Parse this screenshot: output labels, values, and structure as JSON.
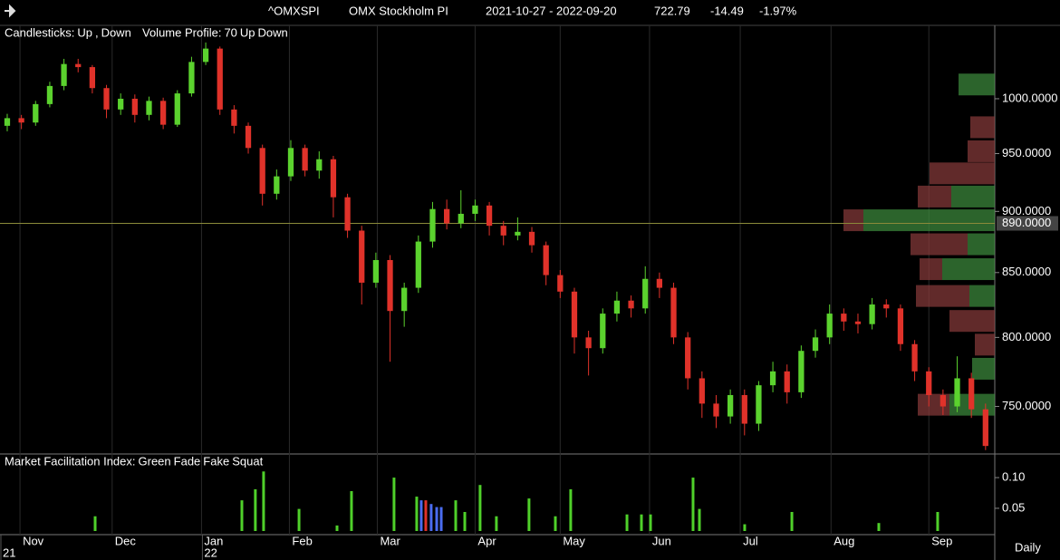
{
  "header": {
    "symbol": "^OMXSPI",
    "name": "OMX Stockholm PI",
    "range": "2021-10-27 - 2022-09-20",
    "last": 722.79,
    "change": -14.49,
    "change_pct": "-1.97%",
    "interval": "Daily"
  },
  "chart_data": [
    {
      "type": "candlestick",
      "legend_title": "Candlesticks:",
      "legend_separator": ",",
      "legend": [
        {
          "name": "Up",
          "color": "#5bd22e"
        },
        {
          "name": "Down",
          "color": "#e0322a"
        }
      ],
      "ohlc": [
        [
          975,
          986,
          970,
          982
        ],
        [
          982,
          985,
          972,
          978
        ],
        [
          978,
          998,
          975,
          995
        ],
        [
          995,
          1016,
          992,
          1012
        ],
        [
          1012,
          1038,
          1008,
          1033
        ],
        [
          1033,
          1038,
          1025,
          1030
        ],
        [
          1030,
          1032,
          1005,
          1010
        ],
        [
          1010,
          1013,
          982,
          990
        ],
        [
          990,
          1005,
          985,
          1000
        ],
        [
          1000,
          1004,
          978,
          985
        ],
        [
          985,
          1002,
          980,
          998
        ],
        [
          998,
          1001,
          972,
          976
        ],
        [
          976,
          1008,
          974,
          1005
        ],
        [
          1005,
          1040,
          1002,
          1035
        ],
        [
          1035,
          1054,
          1032,
          1048
        ],
        [
          1048,
          1050,
          985,
          990
        ],
        [
          990,
          994,
          968,
          975
        ],
        [
          975,
          978,
          950,
          955
        ],
        [
          955,
          958,
          905,
          915
        ],
        [
          915,
          936,
          910,
          930
        ],
        [
          930,
          962,
          926,
          955
        ],
        [
          955,
          958,
          930,
          935
        ],
        [
          935,
          952,
          928,
          945
        ],
        [
          945,
          948,
          895,
          912
        ],
        [
          912,
          915,
          878,
          884
        ],
        [
          884,
          888,
          825,
          842
        ],
        [
          842,
          866,
          838,
          860
        ],
        [
          860,
          864,
          782,
          820
        ],
        [
          820,
          842,
          808,
          838
        ],
        [
          838,
          880,
          834,
          875
        ],
        [
          875,
          908,
          870,
          902
        ],
        [
          902,
          910,
          885,
          890
        ],
        [
          890,
          918,
          886,
          898
        ],
        [
          898,
          910,
          892,
          905
        ],
        [
          905,
          908,
          880,
          888
        ],
        [
          888,
          892,
          872,
          880
        ],
        [
          880,
          895,
          876,
          883
        ],
        [
          883,
          887,
          866,
          872
        ],
        [
          872,
          875,
          840,
          848
        ],
        [
          848,
          852,
          830,
          835
        ],
        [
          835,
          838,
          788,
          800
        ],
        [
          800,
          805,
          772,
          792
        ],
        [
          792,
          822,
          788,
          818
        ],
        [
          818,
          835,
          812,
          828
        ],
        [
          828,
          832,
          815,
          822
        ],
        [
          822,
          855,
          818,
          845
        ],
        [
          845,
          850,
          830,
          838
        ],
        [
          838,
          842,
          795,
          800
        ],
        [
          800,
          804,
          762,
          770
        ],
        [
          770,
          775,
          742,
          752
        ],
        [
          752,
          758,
          735,
          743
        ],
        [
          743,
          762,
          738,
          758
        ],
        [
          758,
          762,
          730,
          738
        ],
        [
          738,
          768,
          733,
          765
        ],
        [
          765,
          782,
          760,
          775
        ],
        [
          775,
          780,
          752,
          760
        ],
        [
          760,
          794,
          756,
          790
        ],
        [
          790,
          806,
          785,
          800
        ],
        [
          800,
          825,
          795,
          818
        ],
        [
          818,
          822,
          805,
          812
        ],
        [
          812,
          818,
          803,
          810
        ],
        [
          810,
          830,
          806,
          825
        ],
        [
          825,
          829,
          815,
          822
        ],
        [
          822,
          825,
          790,
          795
        ],
        [
          795,
          798,
          768,
          775
        ],
        [
          775,
          778,
          750,
          758
        ],
        [
          758,
          762,
          744,
          750
        ],
        [
          750,
          786,
          746,
          770
        ],
        [
          770,
          774,
          742,
          748
        ],
        [
          748,
          752,
          720,
          722.79
        ]
      ],
      "xlim": [
        -0.51,
        69.65
      ],
      "xticks": [
        {
          "value": 0.9,
          "label": "Nov"
        },
        {
          "value": 7.4,
          "label": "Dec"
        },
        {
          "value": 13.7,
          "label": "Jan"
        },
        {
          "value": 19.9,
          "label": "Feb"
        },
        {
          "value": 26.1,
          "label": "Mar"
        },
        {
          "value": 33.0,
          "label": "Apr"
        },
        {
          "value": 39.0,
          "label": "May"
        },
        {
          "value": 45.3,
          "label": "Jun"
        },
        {
          "value": 51.7,
          "label": "Jul"
        },
        {
          "value": 58.1,
          "label": "Aug"
        },
        {
          "value": 65.0,
          "label": "Sep"
        }
      ],
      "year_ticks": [
        {
          "value": -0.51,
          "label": "21"
        },
        {
          "value": 13.7,
          "label": "22"
        }
      ],
      "ylim": [
        718,
        1071
      ],
      "log_scale": true,
      "yticks": [
        {
          "value": 750,
          "label": "750.0000"
        },
        {
          "value": 800,
          "label": "800.0000"
        },
        {
          "value": 850,
          "label": "850.0000"
        },
        {
          "value": 900,
          "label": "900.0000"
        },
        {
          "value": 950,
          "label": "950.0000"
        },
        {
          "value": 1000,
          "label": "1000.0000"
        }
      ],
      "price_line": {
        "value": 890,
        "label": "890.0000",
        "color": "#8a8a3a"
      },
      "volume_profile": {
        "title": "Volume Profile:",
        "opacity": 70,
        "up_label": "Up",
        "down_label": "Down",
        "up_color": "#3f8f3f",
        "down_color": "#8a3c3c",
        "prices": [
          1013.4,
          973.7,
          952.1,
          932.6,
          912.6,
          892.6,
          872.8,
          852.7,
          831.6,
          812.4,
          794.6,
          776.9,
          751.2
        ],
        "up": [
          40,
          0,
          0,
          0,
          48,
          145,
          30,
          58,
          28,
          0,
          0,
          25,
          50
        ],
        "down": [
          0,
          27,
          30,
          72,
          37,
          22,
          63,
          25,
          59,
          50,
          22,
          0,
          35
        ]
      }
    },
    {
      "type": "bar",
      "title": "Market Facilitation Index:",
      "xlim": [
        -0.51,
        69.65
      ],
      "ylim": [
        0.013,
        0.137
      ],
      "yticks": [
        0.05,
        {
          "value": 0.1,
          "label": "0.10"
        }
      ],
      "series": [
        {
          "name": "Green",
          "color": "#4fd02a",
          "x": [
            6.2,
            16.55,
            17.5,
            18.08,
            20.58,
            23.26,
            24.28,
            27.28,
            28.88,
            31.63,
            32.27,
            33.35,
            34.5,
            36.8,
            38.66,
            39.74,
            43.71,
            44.73,
            45.37,
            48.37,
            48.82,
            52.01,
            55.34,
            61.47,
            65.62
          ],
          "values": [
            0.037,
            0.063,
            0.081,
            0.11,
            0.049,
            0.022,
            0.078,
            0.1,
            0.069,
            0.063,
            0.044,
            0.088,
            0.037,
            0.066,
            0.037,
            0.081,
            0.04,
            0.04,
            0.04,
            0.1,
            0.049,
            0.024,
            0.044,
            0.026,
            0.044
          ]
        },
        {
          "name": "Fade",
          "color": "#4a6cf0",
          "x": [
            29.2,
            29.9,
            30.29,
            30.61
          ],
          "values": [
            0.063,
            0.057,
            0.052,
            0.052
          ]
        },
        {
          "name": "Fake",
          "color": "#d8d8d8",
          "x": [],
          "values": []
        },
        {
          "name": "Squat",
          "color": "#e0322a",
          "x": [
            29.52
          ],
          "values": [
            0.063
          ]
        }
      ]
    }
  ]
}
